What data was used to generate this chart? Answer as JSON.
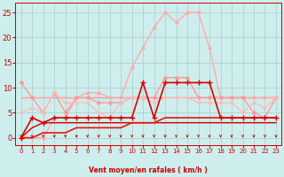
{
  "xlabel": "Vent moyen/en rafales ( km/h )",
  "xlim": [
    -0.5,
    23.5
  ],
  "ylim": [
    -1.5,
    27
  ],
  "yticks": [
    0,
    5,
    10,
    15,
    20,
    25
  ],
  "xticks": [
    0,
    1,
    2,
    3,
    4,
    5,
    6,
    7,
    8,
    9,
    10,
    11,
    12,
    13,
    14,
    15,
    16,
    17,
    18,
    19,
    20,
    21,
    22,
    23
  ],
  "bg_color": "#ceeeed",
  "grid_color": "#aacccc",
  "series": [
    {
      "name": "light_pink_peak",
      "y": [
        0,
        0,
        0,
        4,
        4,
        8,
        9,
        9,
        8,
        8,
        14,
        18,
        22,
        25,
        23,
        25,
        25,
        18,
        8,
        8,
        8,
        8,
        8,
        8
      ],
      "color": "#ffaaaa",
      "lw": 1.0,
      "marker": "o",
      "ms": 2.0,
      "zorder": 2
    },
    {
      "name": "medium_pink_flat",
      "y": [
        8,
        8,
        8,
        8,
        8,
        8,
        8,
        8,
        8,
        8,
        8,
        8,
        8,
        8,
        8,
        8,
        8,
        8,
        8,
        8,
        8,
        8,
        8,
        8
      ],
      "color": "#ff9999",
      "lw": 1.0,
      "marker": null,
      "ms": 0,
      "zorder": 1
    },
    {
      "name": "medium_pink_varying",
      "y": [
        11,
        8,
        5,
        9,
        5,
        8,
        8,
        7,
        7,
        7,
        8,
        8,
        8,
        12,
        12,
        12,
        8,
        8,
        8,
        8,
        8,
        5,
        4,
        8
      ],
      "color": "#ff9999",
      "lw": 1.0,
      "marker": "D",
      "ms": 2.0,
      "zorder": 3
    },
    {
      "name": "pink_mid_varying",
      "y": [
        5,
        6,
        5,
        9,
        7,
        7,
        7,
        5,
        4,
        7,
        8,
        8,
        7,
        8,
        8,
        8,
        7,
        7,
        7,
        7,
        5,
        7,
        6,
        8
      ],
      "color": "#ffbbbb",
      "lw": 1.0,
      "marker": "s",
      "ms": 2.0,
      "zorder": 3
    },
    {
      "name": "dark_red_stepped",
      "y": [
        0,
        4,
        3,
        4,
        4,
        4,
        4,
        4,
        4,
        4,
        4,
        11,
        4,
        11,
        11,
        11,
        11,
        11,
        4,
        4,
        4,
        4,
        4,
        4
      ],
      "color": "#dd0000",
      "lw": 1.2,
      "marker": "+",
      "ms": 4,
      "zorder": 5
    },
    {
      "name": "dark_red_low1",
      "y": [
        0,
        2,
        3,
        3,
        3,
        3,
        3,
        3,
        3,
        3,
        3,
        3,
        3,
        3,
        3,
        3,
        3,
        3,
        3,
        3,
        3,
        3,
        3,
        3
      ],
      "color": "#cc0000",
      "lw": 1.0,
      "marker": null,
      "ms": 0,
      "zorder": 4
    },
    {
      "name": "dark_red_rising",
      "y": [
        0,
        0,
        1,
        1,
        1,
        2,
        2,
        2,
        2,
        2,
        3,
        3,
        3,
        4,
        4,
        4,
        4,
        4,
        4,
        4,
        4,
        4,
        4,
        4
      ],
      "color": "#ee1111",
      "lw": 1.2,
      "marker": null,
      "ms": 0,
      "zorder": 4
    }
  ],
  "wind_arrows": {
    "x": [
      0,
      1,
      2,
      3,
      4,
      5,
      6,
      7,
      8,
      9,
      10,
      11,
      12,
      13,
      14,
      15,
      16,
      17,
      18,
      19,
      20,
      21,
      22,
      23
    ],
    "color": "#cc0000"
  }
}
